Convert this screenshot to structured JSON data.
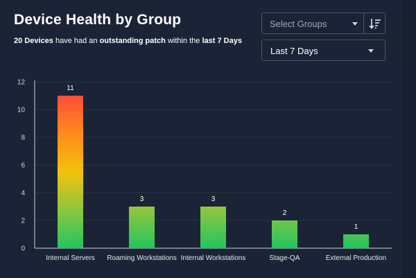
{
  "header": {
    "title": "Device Health by Group",
    "subtitle_count": "20 Devices",
    "subtitle_text1": " have had an ",
    "subtitle_bold1": "outstanding patch",
    "subtitle_text2": " within the ",
    "subtitle_bold2": "last 7 Days"
  },
  "controls": {
    "groups_placeholder": "Select Groups",
    "sort_icon": "sort-descending-icon",
    "range_value": "Last 7 Days"
  },
  "chart_data": {
    "type": "bar",
    "categories": [
      "Internal Servers",
      "Roaming Workstations",
      "Internal Workstations",
      "Stage-QA",
      "External Production"
    ],
    "values": [
      11,
      3,
      3,
      2,
      1
    ],
    "ylim": [
      0,
      12
    ],
    "yticks": [
      0,
      2,
      4,
      6,
      8,
      10,
      12
    ],
    "grid": true,
    "gradient_colors": [
      "#22c55e",
      "#8cc63f",
      "#f4c20d",
      "#ff8c1a",
      "#ff4d3a"
    ],
    "title": "",
    "xlabel": "",
    "ylabel": ""
  }
}
